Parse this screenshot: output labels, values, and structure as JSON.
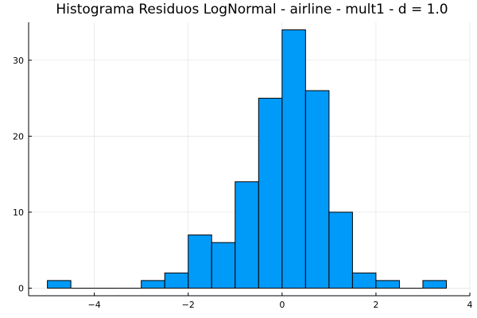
{
  "chart_data": {
    "type": "bar",
    "title": "Histograma Residuos LogNormal - airline - mult1 - d = 1.0",
    "xlabel": "",
    "ylabel": "",
    "bin_width": 0.5,
    "bins": [
      {
        "x0": -5.0,
        "x1": -4.5,
        "count": 1
      },
      {
        "x0": -4.5,
        "x1": -4.0,
        "count": 0
      },
      {
        "x0": -4.0,
        "x1": -3.5,
        "count": 0
      },
      {
        "x0": -3.5,
        "x1": -3.0,
        "count": 0
      },
      {
        "x0": -3.0,
        "x1": -2.5,
        "count": 1
      },
      {
        "x0": -2.5,
        "x1": -2.0,
        "count": 2
      },
      {
        "x0": -2.0,
        "x1": -1.5,
        "count": 7
      },
      {
        "x0": -1.5,
        "x1": -1.0,
        "count": 6
      },
      {
        "x0": -1.0,
        "x1": -0.5,
        "count": 14
      },
      {
        "x0": -0.5,
        "x1": 0.0,
        "count": 25
      },
      {
        "x0": 0.0,
        "x1": 0.5,
        "count": 34
      },
      {
        "x0": 0.5,
        "x1": 1.0,
        "count": 26
      },
      {
        "x0": 1.0,
        "x1": 1.5,
        "count": 10
      },
      {
        "x0": 1.5,
        "x1": 2.0,
        "count": 2
      },
      {
        "x0": 2.0,
        "x1": 2.5,
        "count": 1
      },
      {
        "x0": 2.5,
        "x1": 3.0,
        "count": 0
      },
      {
        "x0": 3.0,
        "x1": 3.5,
        "count": 1
      }
    ],
    "xlim": [
      -5.4,
      4.0
    ],
    "ylim": [
      -1,
      35
    ],
    "x_ticks": [
      -4,
      -2,
      0,
      2,
      4
    ],
    "x_tick_labels": [
      "−4",
      "−2",
      "0",
      "2",
      "4"
    ],
    "y_ticks": [
      0,
      10,
      20,
      30
    ],
    "y_tick_labels": [
      "0",
      "10",
      "20",
      "30"
    ],
    "grid": true,
    "legend": "none",
    "bar_color": "#009af9"
  }
}
